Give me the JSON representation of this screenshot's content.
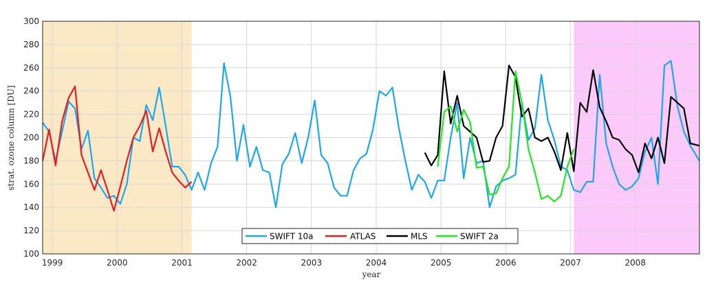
{
  "chart_data": {
    "type": "line",
    "xlabel": "year",
    "ylabel": "strat. ozone column [DU]",
    "xlim": [
      1998.85,
      2008.99
    ],
    "ylim": [
      100,
      300
    ],
    "x_ticks": [
      1999,
      2000,
      2001,
      2002,
      2003,
      2004,
      2005,
      2006,
      2007,
      2008
    ],
    "y_ticks": [
      100,
      120,
      140,
      160,
      180,
      200,
      220,
      240,
      260,
      280,
      300
    ],
    "grid": true,
    "legend_position": "bottom-center",
    "shaded_regions": [
      {
        "x0": 1998.85,
        "x1": 2001.15,
        "color": "#fbe9c6"
      },
      {
        "x0": 2007.05,
        "x1": 2008.99,
        "color": "#fcc9fb"
      }
    ],
    "series": [
      {
        "name": "SWIFT 10a",
        "color": "#1aa7ef",
        "x": [
          1998.85,
          1998.95,
          1999.05,
          1999.15,
          1999.25,
          1999.35,
          1999.45,
          1999.55,
          1999.65,
          1999.75,
          1999.85,
          1999.95,
          2000.05,
          2000.15,
          2000.25,
          2000.35,
          2000.45,
          2000.55,
          2000.65,
          2000.75,
          2000.85,
          2000.95,
          2001.05,
          2001.15,
          2001.25,
          2001.35,
          2001.45,
          2001.55,
          2001.65,
          2001.75,
          2001.85,
          2001.95,
          2002.05,
          2002.15,
          2002.25,
          2002.35,
          2002.45,
          2002.55,
          2002.65,
          2002.75,
          2002.85,
          2002.95,
          2003.05,
          2003.15,
          2003.25,
          2003.35,
          2003.45,
          2003.55,
          2003.65,
          2003.75,
          2003.85,
          2003.95,
          2004.05,
          2004.15,
          2004.25,
          2004.35,
          2004.45,
          2004.55,
          2004.65,
          2004.75,
          2004.85,
          2004.95,
          2005.05,
          2005.15,
          2005.25,
          2005.35,
          2005.45,
          2005.55,
          2005.65,
          2005.75,
          2005.85,
          2005.95,
          2006.05,
          2006.15,
          2006.25,
          2006.35,
          2006.45,
          2006.55,
          2006.65,
          2006.75,
          2006.85,
          2006.95,
          2007.05,
          2007.15,
          2007.25,
          2007.35,
          2007.45,
          2007.55,
          2007.65,
          2007.75,
          2007.85,
          2007.95,
          2008.05,
          2008.15,
          2008.25,
          2008.35,
          2008.45,
          2008.55,
          2008.65,
          2008.75,
          2008.85,
          2008.99
        ],
        "y": [
          213,
          205,
          180,
          205,
          231,
          225,
          190,
          206,
          165,
          157,
          148,
          150,
          143,
          160,
          200,
          197,
          228,
          215,
          243,
          210,
          175,
          175,
          168,
          155,
          170,
          155,
          178,
          192,
          264,
          235,
          180,
          211,
          175,
          192,
          172,
          170,
          140,
          177,
          186,
          204,
          178,
          200,
          232,
          185,
          178,
          157,
          150,
          150,
          172,
          182,
          186,
          207,
          240,
          236,
          243,
          208,
          180,
          155,
          168,
          162,
          148,
          163,
          163,
          200,
          230,
          165,
          200,
          178,
          180,
          140,
          158,
          163,
          165,
          168,
          230,
          198,
          208,
          254,
          215,
          198,
          175,
          172,
          155,
          153,
          162,
          162,
          254,
          195,
          175,
          160,
          155,
          158,
          165,
          188,
          200,
          160,
          262,
          266,
          227,
          205,
          193,
          180
        ]
      },
      {
        "name": "ATLAS",
        "color": "#e81c1c",
        "x": [
          1998.85,
          1998.95,
          1999.05,
          1999.15,
          1999.25,
          1999.35,
          1999.45,
          1999.55,
          1999.65,
          1999.75,
          1999.85,
          1999.95,
          2000.05,
          2000.15,
          2000.25,
          2000.35,
          2000.45,
          2000.55,
          2000.65,
          2000.75,
          2000.85,
          2000.95,
          2001.05,
          2001.15
        ],
        "y": [
          180,
          207,
          176,
          214,
          234,
          244,
          185,
          170,
          155,
          172,
          155,
          137,
          158,
          180,
          200,
          210,
          223,
          188,
          208,
          188,
          170,
          163,
          157,
          162
        ]
      },
      {
        "name": "MLS",
        "color": "#000000",
        "x": [
          2004.75,
          2004.85,
          2004.95,
          2005.05,
          2005.15,
          2005.25,
          2005.35,
          2005.45,
          2005.55,
          2005.65,
          2005.75,
          2005.85,
          2005.95,
          2006.05,
          2006.15,
          2006.25,
          2006.35,
          2006.45,
          2006.55,
          2006.65,
          2006.75,
          2006.85,
          2006.95,
          2007.05,
          2007.15,
          2007.25,
          2007.35,
          2007.45,
          2007.55,
          2007.65,
          2007.75,
          2007.85,
          2007.95,
          2008.05,
          2008.15,
          2008.25,
          2008.35,
          2008.45,
          2008.55,
          2008.65,
          2008.75,
          2008.85,
          2008.99
        ],
        "y": [
          187,
          176,
          185,
          257,
          212,
          236,
          210,
          205,
          200,
          179,
          180,
          200,
          210,
          262,
          252,
          218,
          225,
          200,
          197,
          200,
          188,
          172,
          204,
          171,
          230,
          222,
          258,
          226,
          214,
          200,
          198,
          190,
          185,
          170,
          195,
          182,
          200,
          178,
          235,
          230,
          225,
          195,
          193
        ]
      },
      {
        "name": "SWIFT 2a",
        "color": "#1ee81e",
        "x": [
          2004.95,
          2005.05,
          2005.15,
          2005.25,
          2005.35,
          2005.45,
          2005.55,
          2005.65,
          2005.75,
          2005.85,
          2005.95,
          2006.05,
          2006.15,
          2006.25,
          2006.35,
          2006.45,
          2006.55,
          2006.65,
          2006.75,
          2006.85,
          2006.95,
          2007.05
        ],
        "y": [
          175,
          222,
          227,
          205,
          224,
          213,
          174,
          175,
          151,
          152,
          165,
          175,
          257,
          230,
          190,
          170,
          147,
          150,
          145,
          150,
          175,
          190
        ]
      }
    ]
  }
}
